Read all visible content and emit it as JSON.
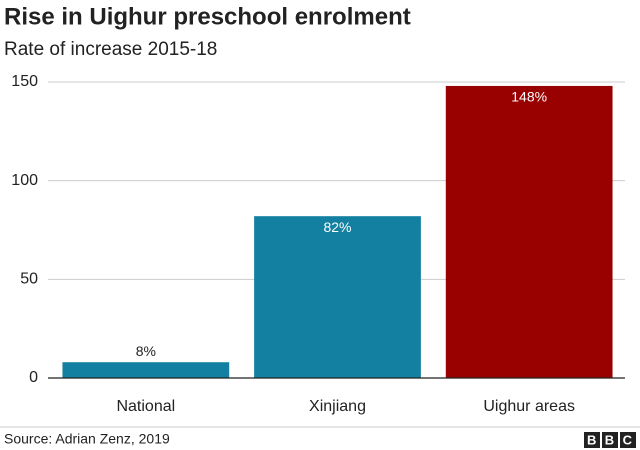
{
  "chart_data": {
    "type": "bar",
    "title": "Rise in Uighur preschool enrolment",
    "subtitle": "Rate of increase 2015-18",
    "categories": [
      "National",
      "Xinjiang",
      "Uighur areas"
    ],
    "values": [
      8,
      82,
      148
    ],
    "value_labels": [
      "8%",
      "82%",
      "148%"
    ],
    "colors": [
      "#1380a1",
      "#1380a1",
      "#990000"
    ],
    "ylim": [
      0,
      150
    ],
    "yticks": [
      0,
      50,
      100,
      150
    ],
    "grid": true
  },
  "footer": {
    "source": "Source: Adrian Zenz, 2019",
    "logo": "BBC"
  }
}
